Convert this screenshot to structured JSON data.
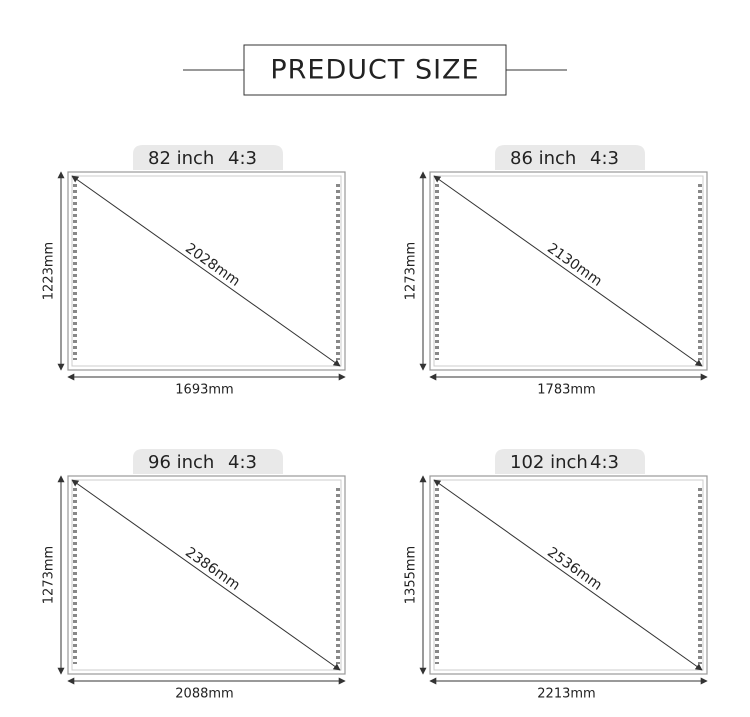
{
  "header": {
    "title": "PREDUCT SIZE"
  },
  "panels": [
    {
      "size": "82 inch",
      "ratio": "4:3",
      "diagonal": "2028mm",
      "height": "1223mm",
      "width": "1693mm"
    },
    {
      "size": "86 inch",
      "ratio": "4:3",
      "diagonal": "2130mm",
      "height": "1273mm",
      "width": "1783mm"
    },
    {
      "size": "96 inch",
      "ratio": "4:3",
      "diagonal": "2386mm",
      "height": "1273mm",
      "width": "2088mm"
    },
    {
      "size": "102 inch",
      "ratio": "4:3",
      "diagonal": "2536mm",
      "height": "1355mm",
      "width": "2213mm"
    }
  ]
}
